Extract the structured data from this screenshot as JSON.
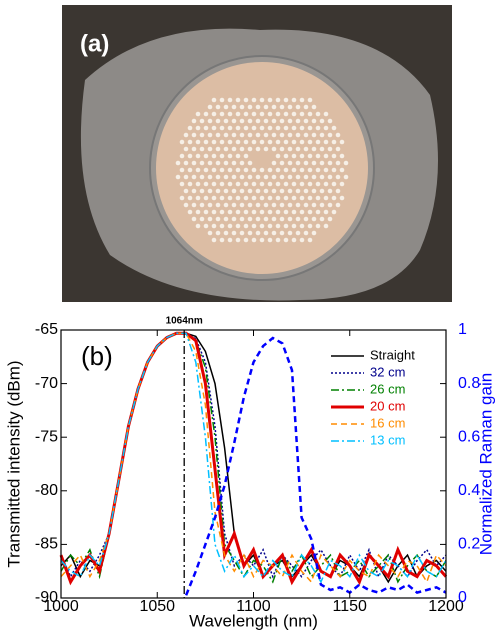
{
  "photo": {
    "label": "(a)"
  },
  "chart_data": {
    "type": "line",
    "panel_label": "(b)",
    "xlabel": "Wavelength (nm)",
    "ylabel": "Transmitted intensity (dBm)",
    "y2label": "Normalized Raman gain",
    "marker": {
      "x": 1064,
      "label": "1064nm"
    },
    "x": [
      1000,
      1005,
      1010,
      1015,
      1020,
      1025,
      1030,
      1035,
      1040,
      1045,
      1050,
      1055,
      1060,
      1065,
      1070,
      1075,
      1080,
      1085,
      1090,
      1095,
      1100,
      1105,
      1110,
      1115,
      1120,
      1125,
      1130,
      1135,
      1140,
      1145,
      1150,
      1155,
      1160,
      1165,
      1170,
      1175,
      1180,
      1185,
      1190,
      1195,
      1200
    ],
    "xlim": [
      1000,
      1200
    ],
    "xticks": [
      1000,
      1050,
      1100,
      1150,
      1200
    ],
    "ylim": [
      -90,
      -65
    ],
    "yticks": [
      -90,
      -85,
      -80,
      -75,
      -70,
      -65
    ],
    "y2lim": [
      0,
      1
    ],
    "y2ticks": [
      0,
      0.2,
      0.4,
      0.6,
      0.8,
      1
    ],
    "legend": "upper right",
    "series": [
      {
        "name": "Straight",
        "color": "#000000",
        "dash": "solid",
        "width": 1.5,
        "values": [
          -87,
          -86,
          -88,
          -86.5,
          -87,
          -84,
          -79,
          -74,
          -70.5,
          -68,
          -66.5,
          -65.7,
          -65.3,
          -65.3,
          -65.6,
          -67,
          -70,
          -76,
          -84,
          -87,
          -86,
          -88,
          -87,
          -86.5,
          -88,
          -87,
          -86,
          -87.5,
          -88,
          -86.5,
          -87,
          -88,
          -86,
          -87,
          -88.5,
          -87,
          -86,
          -88,
          -87,
          -86.5,
          -87.5
        ]
      },
      {
        "name": "32 cm",
        "color": "#00008b",
        "dash": "dot",
        "width": 1.5,
        "values": [
          -86,
          -88,
          -86.5,
          -87.5,
          -86,
          -84,
          -79,
          -74,
          -70.5,
          -68,
          -66.5,
          -65.7,
          -65.3,
          -65.3,
          -65.8,
          -68,
          -74,
          -84,
          -87,
          -86,
          -87,
          -85.5,
          -88,
          -86,
          -87,
          -88,
          -86.5,
          -85.5,
          -87,
          -88,
          -86,
          -87.5,
          -85.5,
          -88,
          -86,
          -87,
          -88,
          -86.5,
          -85.5,
          -87,
          -86
        ]
      },
      {
        "name": "26 cm",
        "color": "#008000",
        "dash": "dashdot",
        "width": 1.5,
        "values": [
          -87.5,
          -86,
          -87,
          -85.5,
          -88,
          -84,
          -79,
          -74,
          -70.5,
          -68,
          -66.5,
          -65.7,
          -65.3,
          -65.3,
          -66,
          -68.5,
          -75,
          -85,
          -86.5,
          -88,
          -86.5,
          -87,
          -88.5,
          -86,
          -87.5,
          -86,
          -88,
          -87,
          -86,
          -88,
          -87.5,
          -86.5,
          -88,
          -87,
          -86,
          -88.5,
          -87,
          -86,
          -87.5,
          -88,
          -86.5
        ]
      },
      {
        "name": "20 cm",
        "color": "#e00000",
        "dash": "solid",
        "width": 3,
        "values": [
          -86,
          -88.5,
          -87,
          -86,
          -87.5,
          -84,
          -79,
          -74,
          -70.5,
          -68,
          -66.5,
          -65.7,
          -65.3,
          -65.3,
          -66,
          -70,
          -78,
          -86,
          -84,
          -87,
          -85.5,
          -88,
          -87,
          -86,
          -88.5,
          -87,
          -85.5,
          -87.5,
          -88,
          -86,
          -87,
          -88.5,
          -86,
          -87,
          -88,
          -85.5,
          -87.5,
          -88,
          -86.5,
          -87,
          -88
        ]
      },
      {
        "name": "16 cm",
        "color": "#ff8c00",
        "dash": "dash",
        "width": 1.5,
        "values": [
          -88,
          -87,
          -86,
          -88,
          -86.5,
          -84,
          -79,
          -74,
          -70.5,
          -68,
          -66.5,
          -65.7,
          -65.3,
          -65.3,
          -67,
          -72,
          -82,
          -86,
          -87.5,
          -86,
          -88,
          -86.5,
          -87,
          -88,
          -86,
          -87.5,
          -88.5,
          -86,
          -87,
          -88,
          -86.5,
          -87.5,
          -88,
          -86,
          -87,
          -88,
          -86.5,
          -87,
          -88.5,
          -86,
          -87
        ]
      },
      {
        "name": "13 cm",
        "color": "#00bfff",
        "dash": "dashdot",
        "width": 1.5,
        "values": [
          -86.5,
          -87.5,
          -88,
          -86,
          -87,
          -84,
          -79,
          -74,
          -70.5,
          -68,
          -66.5,
          -65.7,
          -65.3,
          -65.3,
          -68,
          -75,
          -85,
          -87.5,
          -86,
          -88,
          -87,
          -88,
          -86.5,
          -87.5,
          -88,
          -86,
          -87,
          -88.5,
          -86.5,
          -87,
          -88,
          -86,
          -87.5,
          -88,
          -86.5,
          -87,
          -88,
          -86,
          -87.5,
          -88,
          -86.5
        ]
      },
      {
        "color": "#0000ff",
        "dash": "dash",
        "width": 2.5,
        "axis": "y2",
        "values": [
          null,
          null,
          null,
          null,
          null,
          null,
          null,
          null,
          null,
          null,
          null,
          null,
          null,
          0.01,
          0.1,
          0.2,
          0.3,
          0.42,
          0.58,
          0.75,
          0.88,
          0.94,
          0.97,
          0.95,
          0.85,
          0.3,
          0.22,
          0.05,
          0.03,
          0.04,
          0.02,
          0.05,
          0.03,
          0.02,
          0.04,
          0.03,
          0.05,
          0.02,
          0.03,
          0.04,
          0.02
        ]
      }
    ]
  }
}
